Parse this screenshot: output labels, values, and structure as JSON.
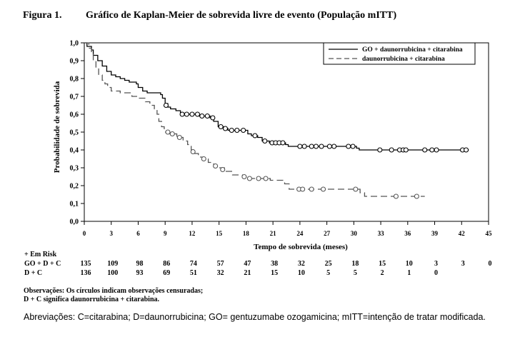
{
  "figure_label": "Figura 1.",
  "figure_title": "Gráfico de Kaplan-Meier de sobrevida livre de evento (População mITT)",
  "chart_data": {
    "type": "line",
    "subtype": "kaplan-meier-step",
    "xlabel": "Tempo de sobrevida (meses)",
    "ylabel": "Probabilidade de sobrevida",
    "xlim": [
      0,
      45
    ],
    "ylim": [
      0,
      1.0
    ],
    "x_ticks": [
      0,
      3,
      6,
      9,
      12,
      15,
      18,
      21,
      24,
      27,
      30,
      33,
      36,
      39,
      42,
      45
    ],
    "y_ticks": [
      "0,0",
      "0,1",
      "0,2",
      "0,3",
      "0,4",
      "0,5",
      "0,6",
      "0,7",
      "0,8",
      "0,9",
      "1,0"
    ],
    "grid": false,
    "legend_position": "top-right",
    "series": [
      {
        "name": "GO + daunorrubicina + citarabina",
        "style": "solid",
        "color": "#000000",
        "steps": [
          [
            0,
            1.0
          ],
          [
            0.3,
            0.98
          ],
          [
            0.8,
            0.96
          ],
          [
            1,
            0.93
          ],
          [
            1.5,
            0.9
          ],
          [
            2,
            0.87
          ],
          [
            2.5,
            0.84
          ],
          [
            3,
            0.82
          ],
          [
            3.5,
            0.81
          ],
          [
            4,
            0.8
          ],
          [
            4.5,
            0.79
          ],
          [
            5,
            0.78
          ],
          [
            5.8,
            0.77
          ],
          [
            6,
            0.75
          ],
          [
            6.5,
            0.73
          ],
          [
            7,
            0.72
          ],
          [
            8.5,
            0.71
          ],
          [
            8.7,
            0.69
          ],
          [
            9,
            0.66
          ],
          [
            9.3,
            0.64
          ],
          [
            9.6,
            0.63
          ],
          [
            10.2,
            0.62
          ],
          [
            10.7,
            0.6
          ],
          [
            12.8,
            0.59
          ],
          [
            14,
            0.58
          ],
          [
            14.4,
            0.56
          ],
          [
            14.9,
            0.53
          ],
          [
            15.5,
            0.52
          ],
          [
            16,
            0.51
          ],
          [
            18.2,
            0.49
          ],
          [
            18.6,
            0.48
          ],
          [
            19.3,
            0.47
          ],
          [
            19.8,
            0.45
          ],
          [
            20.6,
            0.44
          ],
          [
            22.4,
            0.43
          ],
          [
            22.7,
            0.42
          ],
          [
            30.3,
            0.41
          ],
          [
            30.6,
            0.4
          ],
          [
            42.8,
            0.4
          ]
        ],
        "censored": [
          [
            9.1,
            0.65
          ],
          [
            10.9,
            0.6
          ],
          [
            11.4,
            0.6
          ],
          [
            12,
            0.6
          ],
          [
            12.6,
            0.6
          ],
          [
            13.1,
            0.59
          ],
          [
            13.7,
            0.59
          ],
          [
            14.3,
            0.58
          ],
          [
            15.2,
            0.53
          ],
          [
            15.7,
            0.52
          ],
          [
            16.4,
            0.51
          ],
          [
            17,
            0.51
          ],
          [
            17.7,
            0.51
          ],
          [
            19,
            0.48
          ],
          [
            20.1,
            0.45
          ],
          [
            20.9,
            0.44
          ],
          [
            21.3,
            0.44
          ],
          [
            21.7,
            0.44
          ],
          [
            22.1,
            0.44
          ],
          [
            24,
            0.42
          ],
          [
            24.5,
            0.42
          ],
          [
            25.3,
            0.42
          ],
          [
            25.8,
            0.42
          ],
          [
            26.4,
            0.42
          ],
          [
            27.3,
            0.42
          ],
          [
            27.8,
            0.42
          ],
          [
            29.4,
            0.42
          ],
          [
            29.9,
            0.42
          ],
          [
            32.9,
            0.4
          ],
          [
            34.2,
            0.4
          ],
          [
            35.1,
            0.4
          ],
          [
            35.5,
            0.4
          ],
          [
            35.8,
            0.4
          ],
          [
            37.9,
            0.4
          ],
          [
            38.7,
            0.4
          ],
          [
            39.2,
            0.4
          ],
          [
            42.1,
            0.4
          ],
          [
            42.5,
            0.4
          ]
        ]
      },
      {
        "name": "daunorrubicina + citarabina",
        "style": "dashed",
        "color": "#555555",
        "steps": [
          [
            0,
            1.0
          ],
          [
            0.5,
            0.97
          ],
          [
            0.8,
            0.94
          ],
          [
            1,
            0.9
          ],
          [
            1.3,
            0.86
          ],
          [
            1.6,
            0.82
          ],
          [
            2,
            0.79
          ],
          [
            2.3,
            0.77
          ],
          [
            2.6,
            0.75
          ],
          [
            3,
            0.73
          ],
          [
            4,
            0.72
          ],
          [
            5.3,
            0.7
          ],
          [
            6,
            0.69
          ],
          [
            6.8,
            0.67
          ],
          [
            7.3,
            0.65
          ],
          [
            7.8,
            0.63
          ],
          [
            8.1,
            0.6
          ],
          [
            8.3,
            0.56
          ],
          [
            8.6,
            0.53
          ],
          [
            8.9,
            0.5
          ],
          [
            9.5,
            0.49
          ],
          [
            10.3,
            0.47
          ],
          [
            11,
            0.45
          ],
          [
            11.5,
            0.43
          ],
          [
            11.9,
            0.4
          ],
          [
            12.3,
            0.38
          ],
          [
            12.7,
            0.36
          ],
          [
            13.3,
            0.35
          ],
          [
            13.8,
            0.33
          ],
          [
            14.4,
            0.31
          ],
          [
            15,
            0.3
          ],
          [
            15.6,
            0.28
          ],
          [
            16.5,
            0.26
          ],
          [
            17.6,
            0.25
          ],
          [
            18.3,
            0.24
          ],
          [
            20.7,
            0.23
          ],
          [
            22.3,
            0.21
          ],
          [
            22.8,
            0.18
          ],
          [
            30.7,
            0.16
          ],
          [
            31.2,
            0.14
          ],
          [
            37.9,
            0.14
          ]
        ],
        "censored": [
          [
            9.3,
            0.5
          ],
          [
            9.8,
            0.49
          ],
          [
            10.6,
            0.47
          ],
          [
            12.1,
            0.39
          ],
          [
            13.3,
            0.35
          ],
          [
            14.6,
            0.31
          ],
          [
            15.4,
            0.29
          ],
          [
            17.8,
            0.25
          ],
          [
            18.4,
            0.24
          ],
          [
            19.4,
            0.24
          ],
          [
            20.2,
            0.24
          ],
          [
            23.9,
            0.18
          ],
          [
            24.3,
            0.18
          ],
          [
            25.3,
            0.18
          ],
          [
            26.6,
            0.18
          ],
          [
            30.2,
            0.18
          ],
          [
            34.7,
            0.14
          ],
          [
            37,
            0.14
          ]
        ]
      }
    ]
  },
  "risk_table": {
    "header": "+ Em Risk",
    "rows": [
      {
        "label": "GO + D + C",
        "values": [
          "135",
          "109",
          "98",
          "86",
          "74",
          "57",
          "47",
          "38",
          "32",
          "25",
          "18",
          "15",
          "10",
          "3",
          "3",
          "0"
        ]
      },
      {
        "label": "D + C",
        "values": [
          "136",
          "100",
          "93",
          "69",
          "51",
          "32",
          "21",
          "15",
          "10",
          "5",
          "5",
          "2",
          "1",
          "0",
          "",
          ""
        ]
      }
    ]
  },
  "notes": [
    "Observações: Os círculos indicam observações censuradas;",
    "D + C significa daunorrubicina + citarabina."
  ],
  "abbreviations": "Abreviações: C=citarabina; D=daunorrubicina; GO= gentuzumabe ozogamicina; mITT=intenção de tratar modificada."
}
